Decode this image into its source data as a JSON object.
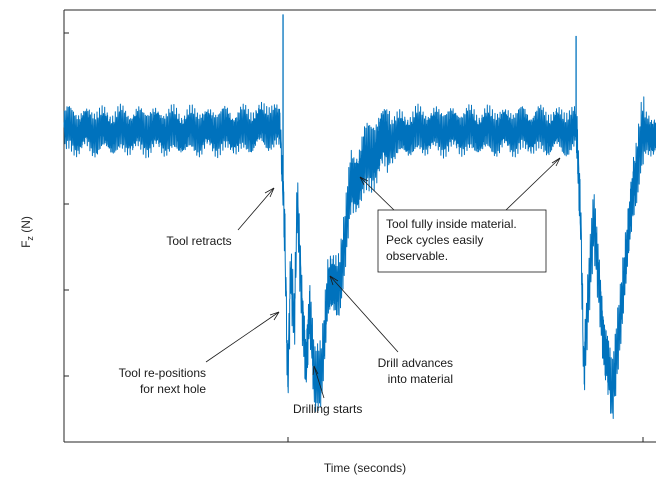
{
  "chart_data": {
    "type": "line",
    "title": "",
    "xlabel": "Time (seconds)",
    "ylabel_main": "F",
    "ylabel_sub": "z",
    "ylabel_unit": "(N)",
    "xlim": [
      0,
      100
    ],
    "ylim": [
      0,
      100
    ],
    "tick_labels_shown": false,
    "grid": false,
    "series": [
      {
        "color": "#0072BD",
        "points": [
          [
            0,
            72
          ],
          [
            5,
            72
          ],
          [
            10,
            72
          ],
          [
            15,
            72
          ],
          [
            20,
            72
          ],
          [
            25,
            72
          ],
          [
            30,
            72
          ],
          [
            35,
            73.5
          ],
          [
            36.5,
            72
          ],
          [
            37.3,
            50
          ],
          [
            37.8,
            15
          ],
          [
            38.3,
            40
          ],
          [
            38.9,
            25
          ],
          [
            39.4,
            55
          ],
          [
            40.2,
            32
          ],
          [
            40.9,
            19
          ],
          [
            41.5,
            30
          ],
          [
            42.3,
            13
          ],
          [
            43.5,
            18
          ],
          [
            44.5,
            34
          ],
          [
            46.5,
            38
          ],
          [
            47.5,
            46
          ],
          [
            48.5,
            60
          ],
          [
            50,
            62
          ],
          [
            52,
            67
          ],
          [
            55,
            70.5
          ],
          [
            60,
            72
          ],
          [
            70,
            72
          ],
          [
            80,
            72
          ],
          [
            85,
            72
          ],
          [
            86.5,
            72
          ],
          [
            87.3,
            52
          ],
          [
            87.8,
            18
          ],
          [
            88.5,
            32
          ],
          [
            89.5,
            50
          ],
          [
            90.5,
            36
          ],
          [
            91.2,
            23
          ],
          [
            92.6,
            10
          ],
          [
            93.6,
            26
          ],
          [
            95,
            42
          ],
          [
            96.2,
            60
          ],
          [
            97.5,
            70
          ],
          [
            99,
            71
          ],
          [
            100,
            72
          ]
        ]
      }
    ],
    "spikes": [
      {
        "x": 37.0,
        "y": 99
      },
      {
        "x": 86.5,
        "y": 94
      }
    ],
    "annotations": [
      {
        "id": "retract",
        "lines": [
          "Tool retracts"
        ],
        "anchor": "middle"
      },
      {
        "id": "reposition",
        "lines": [
          "Tool re-positions",
          "for next hole"
        ],
        "anchor": "end"
      },
      {
        "id": "drill_start",
        "lines": [
          "Drilling starts"
        ],
        "anchor": "start"
      },
      {
        "id": "advance",
        "lines": [
          "Drill advances",
          "into material"
        ],
        "anchor": "end"
      },
      {
        "id": "peck",
        "lines": [
          "Tool fully inside material.",
          "Peck cycles easily",
          "observable."
        ],
        "anchor": "start",
        "boxed": true
      }
    ]
  }
}
